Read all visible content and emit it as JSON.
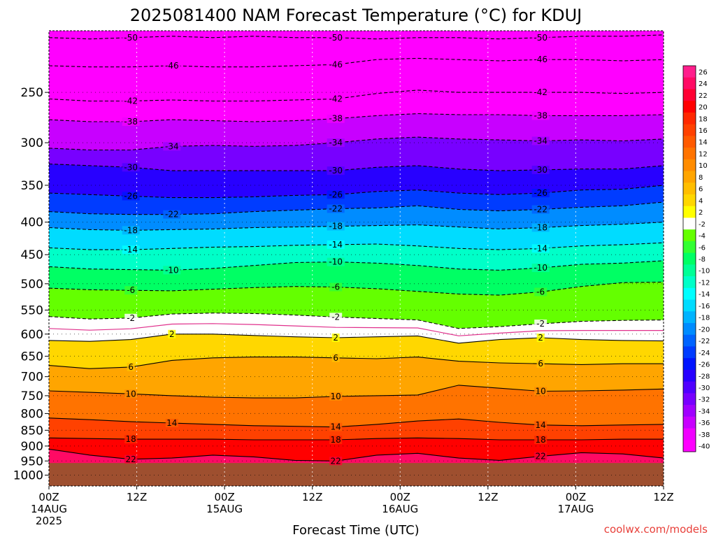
{
  "chart_data": {
    "type": "heatmap",
    "title": "2025081400 NAM Forecast Temperature (°C) for KDUJ",
    "xlabel": "Forecast Time (UTC)",
    "ylabel": "",
    "credit": "coolwx.com/models",
    "y_axis": {
      "units": "hPa",
      "scale": "log",
      "top": 200,
      "bottom": 1040,
      "ticks": [
        250,
        300,
        350,
        400,
        450,
        500,
        550,
        600,
        650,
        700,
        750,
        800,
        850,
        900,
        950,
        1000
      ]
    },
    "x_axis": {
      "hours": [
        0,
        12,
        24,
        36,
        48,
        60,
        72,
        84
      ],
      "labels": [
        [
          "00Z",
          "14AUG",
          "2025"
        ],
        [
          "12Z"
        ],
        [
          "00Z",
          "15AUG"
        ],
        [
          "12Z"
        ],
        [
          "00Z",
          "16AUG"
        ],
        [
          "12Z"
        ],
        [
          "00Z",
          "17AUG"
        ],
        [
          "12Z"
        ]
      ]
    },
    "grid": true,
    "colorbar": {
      "placement": "right",
      "ticks": [
        "26",
        "24",
        "22",
        "20",
        "18",
        "16",
        "14",
        "12",
        "10",
        "8",
        "6",
        "4",
        "2",
        "-2",
        "-4",
        "-6",
        "-8",
        "-10",
        "-12",
        "-14",
        "-16",
        "-18",
        "-20",
        "-22",
        "-24",
        "-26",
        "-28",
        "-30",
        "-32",
        "-34",
        "-36",
        "-38",
        "-40"
      ],
      "colors": [
        "#ff1e8c",
        "#ff0a64",
        "#ff0032",
        "#ff0000",
        "#ff2800",
        "#ff4100",
        "#ff5a00",
        "#ff7300",
        "#ff8c00",
        "#ffa500",
        "#ffbe00",
        "#ffd700",
        "#ffff00",
        "#ffffff",
        "#64ff00",
        "#32ff32",
        "#00ff64",
        "#00ff96",
        "#00ffc8",
        "#00ffff",
        "#00dcff",
        "#00b4ff",
        "#008cff",
        "#0064ff",
        "#003cff",
        "#0014ff",
        "#2800ff",
        "#5000ff",
        "#7800ff",
        "#a000ff",
        "#c800ff",
        "#f000ff",
        "#ff00ff"
      ]
    },
    "terrain_color": "#9e4f2f",
    "surface_pressure": 957,
    "isotherms": [
      {
        "value": -50,
        "pressures": [
          205,
          206,
          205,
          204,
          205,
          204,
          205,
          205,
          206,
          205,
          205,
          206,
          205,
          204,
          204,
          203
        ]
      },
      {
        "value": -46,
        "pressures": [
          227,
          228,
          228,
          227,
          228,
          228,
          227,
          226,
          222,
          221,
          222,
          223,
          222,
          222,
          223,
          222
        ]
      },
      {
        "value": -42,
        "pressures": [
          256,
          258,
          258,
          257,
          258,
          258,
          257,
          256,
          251,
          248,
          250,
          250,
          250,
          250,
          251,
          250
        ]
      },
      {
        "value": -38,
        "pressures": [
          276,
          278,
          278,
          276,
          277,
          278,
          277,
          275,
          272,
          270,
          271,
          271,
          272,
          272,
          272,
          271
        ]
      },
      {
        "value": -34,
        "pressures": [
          306,
          308,
          308,
          304,
          303,
          304,
          303,
          300,
          296,
          294,
          296,
          297,
          298,
          297,
          298,
          296
        ]
      },
      {
        "value": -30,
        "pressures": [
          324,
          326,
          328,
          332,
          332,
          332,
          332,
          332,
          328,
          326,
          330,
          332,
          331,
          330,
          330,
          326
        ]
      },
      {
        "value": -26,
        "pressures": [
          360,
          362,
          364,
          366,
          366,
          365,
          363,
          362,
          358,
          356,
          360,
          362,
          360,
          356,
          355,
          350
        ]
      },
      {
        "value": -22,
        "pressures": [
          385,
          388,
          389,
          389,
          388,
          385,
          383,
          381,
          380,
          377,
          382,
          384,
          382,
          379,
          377,
          372
        ]
      },
      {
        "value": -18,
        "pressures": [
          408,
          411,
          412,
          411,
          410,
          408,
          407,
          406,
          405,
          404,
          407,
          410,
          408,
          405,
          403,
          400
        ]
      },
      {
        "value": -14,
        "pressures": [
          439,
          442,
          442,
          440,
          438,
          437,
          435,
          434,
          433,
          436,
          440,
          442,
          440,
          436,
          434,
          431
        ]
      },
      {
        "value": -10,
        "pressures": [
          470,
          474,
          475,
          476,
          473,
          468,
          463,
          462,
          464,
          468,
          474,
          476,
          472,
          466,
          464,
          460
        ]
      },
      {
        "value": -6,
        "pressures": [
          508,
          511,
          512,
          513,
          510,
          507,
          505,
          506,
          509,
          514,
          519,
          521,
          515,
          505,
          498,
          497
        ]
      },
      {
        "value": -2,
        "pressures": [
          563,
          568,
          566,
          558,
          556,
          557,
          560,
          564,
          567,
          570,
          588,
          584,
          578,
          573,
          571,
          570
        ]
      },
      {
        "value": 2,
        "pressures": [
          614,
          616,
          612,
          600,
          600,
          603,
          606,
          608,
          606,
          604,
          620,
          612,
          608,
          612,
          614,
          615
        ]
      },
      {
        "value": 6,
        "pressures": [
          672,
          680,
          676,
          660,
          654,
          652,
          652,
          654,
          656,
          652,
          662,
          666,
          668,
          670,
          668,
          668
        ]
      },
      {
        "value": 10,
        "pressures": [
          737,
          741,
          745,
          750,
          754,
          756,
          756,
          752,
          750,
          748,
          722,
          730,
          738,
          737,
          735,
          732
        ]
      },
      {
        "value": 14,
        "pressures": [
          813,
          818,
          824,
          828,
          832,
          836,
          838,
          840,
          832,
          822,
          816,
          826,
          834,
          836,
          834,
          832
        ]
      },
      {
        "value": 18,
        "pressures": [
          874,
          876,
          878,
          878,
          878,
          880,
          880,
          880,
          876,
          874,
          876,
          880,
          880,
          880,
          878,
          878
        ]
      },
      {
        "value": 22,
        "pressures": [
          910,
          930,
          944,
          940,
          930,
          936,
          948,
          950,
          930,
          924,
          940,
          948,
          934,
          922,
          926,
          940
        ]
      }
    ]
  }
}
